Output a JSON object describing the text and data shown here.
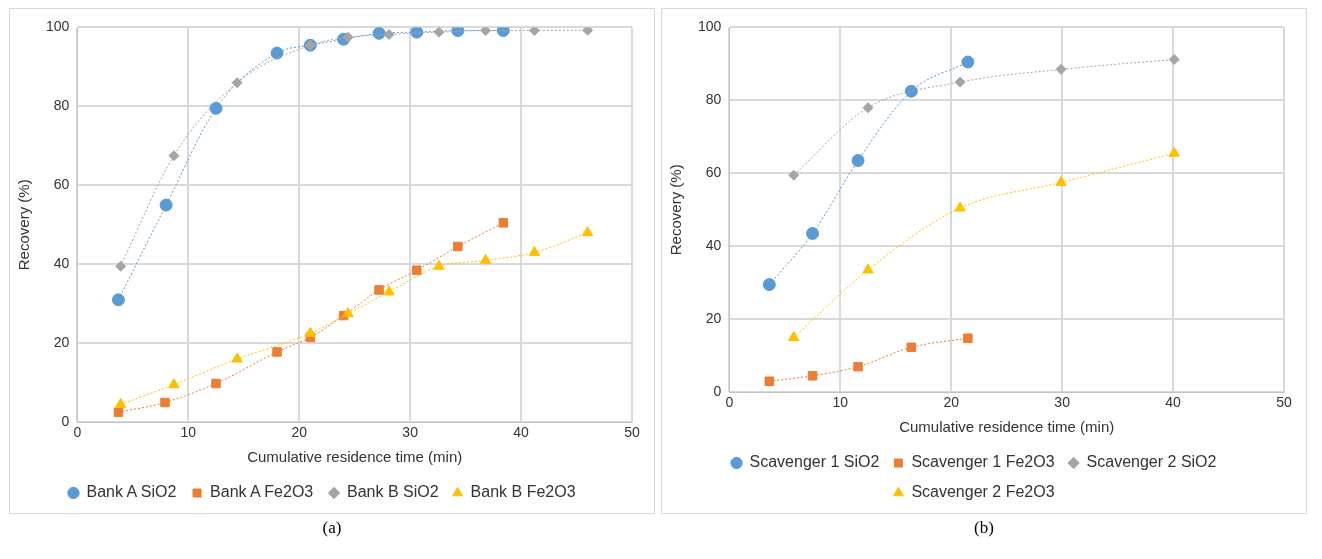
{
  "chart_data": [
    {
      "type": "line",
      "xlabel": "Cumulative residence time (min)",
      "ylabel": "Recovery (%)",
      "xlim": [
        0,
        50
      ],
      "xticks": [
        0,
        10,
        20,
        30,
        40,
        50
      ],
      "ylim": [
        0,
        100
      ],
      "yticks": [
        0,
        20,
        40,
        60,
        80,
        100
      ],
      "grid": true,
      "legend": "bottom",
      "line_style": "dotted",
      "annotations": [
        "(a)"
      ],
      "series": [
        {
          "name": "Bank A SiO2",
          "color": "#5b9bd5",
          "marker": "circle",
          "x": [
            3.7,
            8,
            12.5,
            18,
            21,
            24,
            27.2,
            30.6,
            34.3,
            38.4
          ],
          "values": [
            31,
            55,
            79.5,
            93.5,
            95.5,
            97,
            98.5,
            98.8,
            99.2,
            99.2
          ]
        },
        {
          "name": "Bank A Fe2O3",
          "color": "#ed7d31",
          "marker": "square",
          "x": [
            3.7,
            7.9,
            12.5,
            18,
            21,
            24,
            27.2,
            30.6,
            34.3,
            38.4
          ],
          "values": [
            2.5,
            5,
            9.8,
            17.8,
            21.5,
            27,
            33.5,
            38.5,
            44.5,
            50.5
          ]
        },
        {
          "name": "Bank B SiO2",
          "color": "#a5a5a5",
          "marker": "diamond",
          "x": [
            3.9,
            8.7,
            14.4,
            21,
            24.4,
            28.1,
            32.6,
            36.8,
            41.2,
            46
          ],
          "values": [
            39.5,
            67.5,
            86,
            95.5,
            97.5,
            98.2,
            98.8,
            99.2,
            99.2,
            99.3
          ]
        },
        {
          "name": "Bank B Fe2O3",
          "color": "#ffc000",
          "marker": "triangle",
          "x": [
            3.9,
            8.7,
            14.4,
            21,
            24.4,
            28.1,
            32.6,
            36.8,
            41.2,
            46
          ],
          "values": [
            4.5,
            9.5,
            16,
            22.5,
            27.5,
            33,
            39.5,
            41,
            43,
            48
          ]
        }
      ]
    },
    {
      "type": "line",
      "xlabel": "Cumulative residence time (min)",
      "ylabel": "Recovery (%)",
      "xlim": [
        0,
        50
      ],
      "xticks": [
        0,
        10,
        20,
        30,
        40,
        50
      ],
      "ylim": [
        0,
        100
      ],
      "yticks": [
        0,
        20,
        40,
        60,
        80,
        100
      ],
      "grid": true,
      "legend": "bottom",
      "line_style": "dotted",
      "annotations": [
        "(b)"
      ],
      "series": [
        {
          "name": "Scavenger 1 SiO2",
          "color": "#5b9bd5",
          "marker": "circle",
          "x": [
            3.6,
            7.5,
            11.6,
            16.4,
            21.5
          ],
          "values": [
            29.5,
            43.5,
            63.5,
            82.5,
            90.5
          ]
        },
        {
          "name": "Scavenger 1 Fe2O3",
          "color": "#ed7d31",
          "marker": "square",
          "x": [
            3.6,
            7.5,
            11.6,
            16.4,
            21.5
          ],
          "values": [
            3,
            4.5,
            7,
            12.3,
            14.8
          ]
        },
        {
          "name": "Scavenger 2 SiO2",
          "color": "#a5a5a5",
          "marker": "diamond",
          "x": [
            5.8,
            12.5,
            20.8,
            29.9,
            40.1
          ],
          "values": [
            59.5,
            78,
            85,
            88.5,
            91.2
          ]
        },
        {
          "name": "Scavenger 2 Fe2O3",
          "color": "#ffc000",
          "marker": "triangle",
          "x": [
            5.8,
            12.5,
            20.8,
            29.9,
            40.1
          ],
          "values": [
            15,
            33.5,
            50.5,
            57.5,
            65.5
          ]
        }
      ]
    }
  ]
}
